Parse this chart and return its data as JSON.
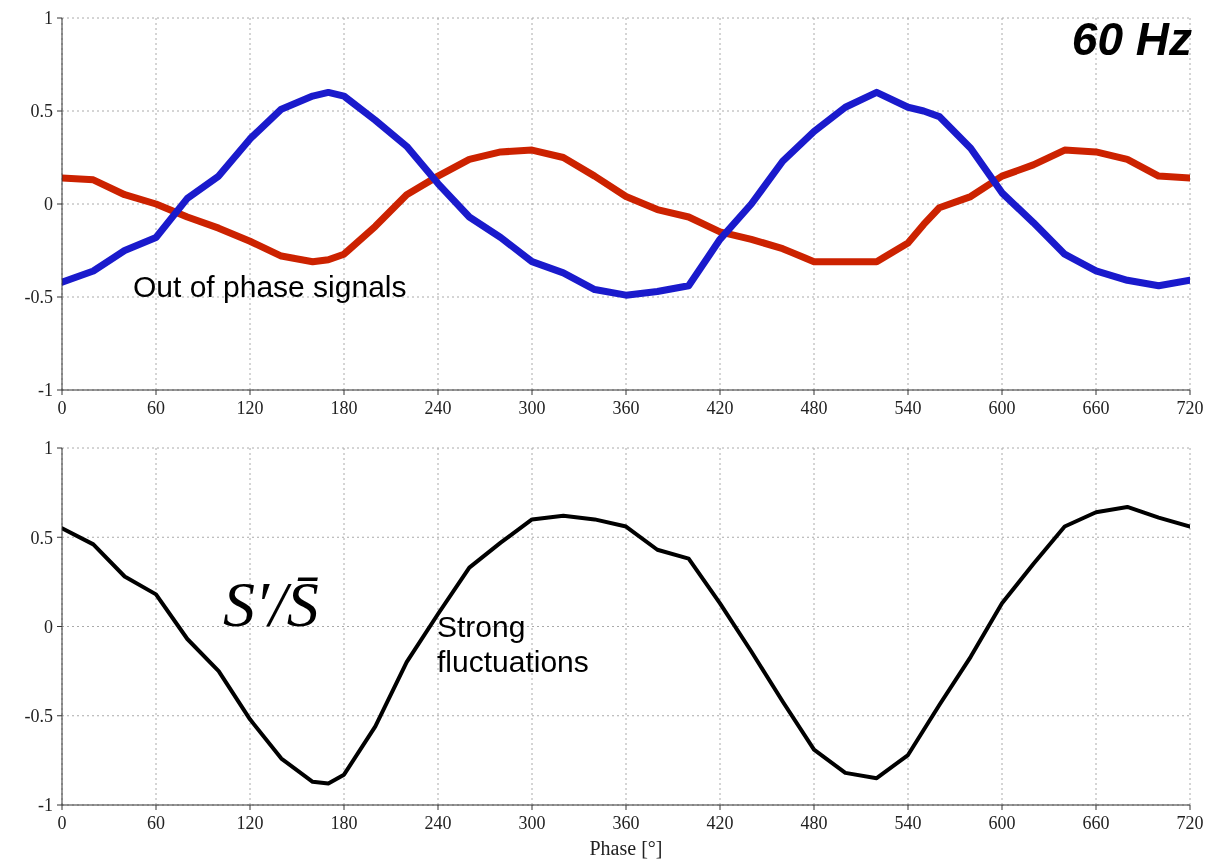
{
  "chart_data": [
    {
      "type": "line",
      "annotations": [
        "60 Hz",
        "Out of phase signals"
      ],
      "x": [
        0,
        20,
        40,
        60,
        80,
        100,
        120,
        140,
        160,
        170,
        180,
        200,
        220,
        240,
        260,
        280,
        300,
        320,
        340,
        360,
        380,
        400,
        420,
        440,
        460,
        480,
        500,
        520,
        540,
        550,
        560,
        580,
        600,
        620,
        640,
        660,
        680,
        700,
        720
      ],
      "series": [
        {
          "color": "#cc2200",
          "values": [
            0.14,
            0.13,
            0.05,
            0,
            -0.07,
            -0.13,
            -0.2,
            -0.28,
            -0.31,
            -0.3,
            -0.27,
            -0.12,
            0.05,
            0.15,
            0.24,
            0.28,
            0.29,
            0.25,
            0.15,
            0.04,
            -0.03,
            -0.07,
            -0.15,
            -0.19,
            -0.24,
            -0.31,
            -0.31,
            -0.31,
            -0.21,
            -0.11,
            -0.02,
            0.04,
            0.15,
            0.21,
            0.29,
            0.28,
            0.24,
            0.15,
            0.14
          ]
        },
        {
          "color": "#1a1acc",
          "values": [
            -0.42,
            -0.36,
            -0.25,
            -0.18,
            0.03,
            0.15,
            0.35,
            0.51,
            0.58,
            0.6,
            0.58,
            0.45,
            0.31,
            0.11,
            -0.07,
            -0.18,
            -0.31,
            -0.37,
            -0.46,
            -0.49,
            -0.47,
            -0.44,
            -0.19,
            0,
            0.23,
            0.39,
            0.52,
            0.6,
            0.52,
            0.5,
            0.47,
            0.3,
            0.06,
            -0.1,
            -0.27,
            -0.36,
            -0.41,
            -0.44,
            -0.41
          ]
        }
      ],
      "xlim": [
        0,
        720
      ],
      "xticks": [
        0,
        60,
        120,
        180,
        240,
        300,
        360,
        420,
        480,
        540,
        600,
        660,
        720
      ],
      "ylim": [
        -1,
        1
      ],
      "yticks": [
        -1,
        -0.5,
        0,
        0.5,
        1
      ],
      "grid": true,
      "legend": false
    },
    {
      "type": "line",
      "xlabel": "Phase [°]",
      "annotations": [
        "S′/S̄",
        "Strong fluctuations"
      ],
      "x": [
        0,
        20,
        40,
        60,
        80,
        100,
        120,
        140,
        160,
        170,
        180,
        200,
        220,
        240,
        260,
        280,
        300,
        320,
        340,
        360,
        380,
        400,
        420,
        440,
        460,
        480,
        500,
        520,
        540,
        560,
        580,
        600,
        620,
        640,
        660,
        680,
        700,
        720
      ],
      "series": [
        {
          "color": "#000000",
          "values": [
            0.55,
            0.46,
            0.28,
            0.18,
            -0.07,
            -0.25,
            -0.52,
            -0.74,
            -0.87,
            -0.88,
            -0.83,
            -0.56,
            -0.2,
            0.07,
            0.33,
            0.47,
            0.6,
            0.62,
            0.6,
            0.56,
            0.43,
            0.38,
            0.13,
            -0.14,
            -0.42,
            -0.69,
            -0.82,
            -0.85,
            -0.72,
            -0.44,
            -0.17,
            0.13,
            0.35,
            0.56,
            0.64,
            0.67,
            0.61,
            0.56
          ]
        }
      ],
      "xlim": [
        0,
        720
      ],
      "xticks": [
        0,
        60,
        120,
        180,
        240,
        300,
        360,
        420,
        480,
        540,
        600,
        660,
        720
      ],
      "ylim": [
        -1,
        1
      ],
      "yticks": [
        -1,
        -0.5,
        0,
        0.5,
        1
      ],
      "grid": true,
      "legend": false
    }
  ]
}
